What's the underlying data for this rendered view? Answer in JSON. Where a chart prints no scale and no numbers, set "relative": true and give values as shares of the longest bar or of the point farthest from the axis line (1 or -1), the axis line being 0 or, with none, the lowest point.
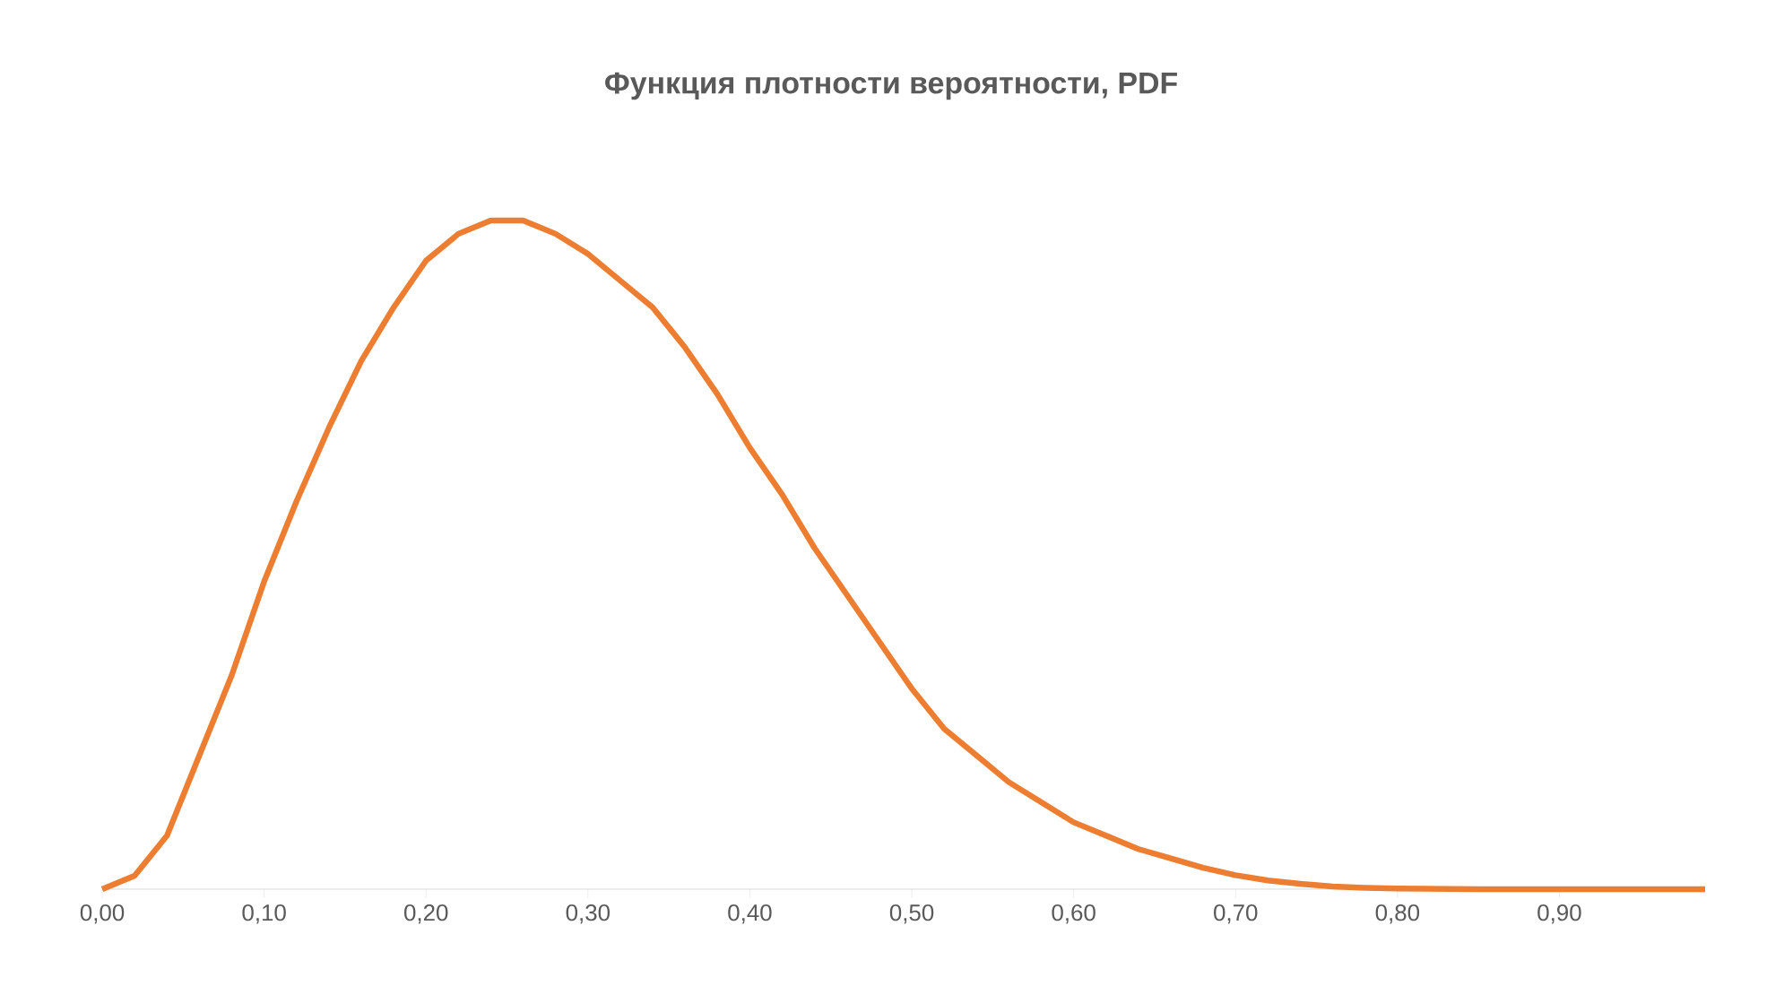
{
  "chart_data": {
    "type": "line",
    "title": "Функция плотности вероятности, PDF",
    "relative": true,
    "color": "#ed7d31",
    "x": [
      0,
      0.02,
      0.04,
      0.06,
      0.08,
      0.1,
      0.12,
      0.14,
      0.16,
      0.18,
      0.2,
      0.22,
      0.24,
      0.26,
      0.28,
      0.3,
      0.32,
      0.34,
      0.36,
      0.38,
      0.4,
      0.42,
      0.44,
      0.46,
      0.48,
      0.5,
      0.52,
      0.54,
      0.56,
      0.58,
      0.6,
      0.62,
      0.64,
      0.66,
      0.68,
      0.7,
      0.72,
      0.74,
      0.76,
      0.78,
      0.8,
      0.85,
      0.9,
      0.95,
      0.99
    ],
    "values": [
      0,
      0.02,
      0.08,
      0.2,
      0.32,
      0.46,
      0.58,
      0.69,
      0.79,
      0.87,
      0.94,
      0.98,
      1.0,
      1.0,
      0.98,
      0.95,
      0.91,
      0.87,
      0.81,
      0.74,
      0.66,
      0.59,
      0.51,
      0.44,
      0.37,
      0.3,
      0.24,
      0.2,
      0.16,
      0.13,
      0.1,
      0.08,
      0.06,
      0.046,
      0.032,
      0.021,
      0.013,
      0.008,
      0.004,
      0.002,
      0.001,
      0,
      0,
      0,
      0
    ],
    "xlim": [
      0,
      0.99
    ],
    "xticks": [
      {
        "value": 0,
        "label": "0,00"
      },
      {
        "value": 0.1,
        "label": "0,10"
      },
      {
        "value": 0.2,
        "label": "0,20"
      },
      {
        "value": 0.3,
        "label": "0,30"
      },
      {
        "value": 0.4,
        "label": "0,40"
      },
      {
        "value": 0.5,
        "label": "0,50"
      },
      {
        "value": 0.6,
        "label": "0,60"
      },
      {
        "value": 0.7,
        "label": "0,70"
      },
      {
        "value": 0.8,
        "label": "0,80"
      },
      {
        "value": 0.9,
        "label": "0,90"
      }
    ]
  }
}
